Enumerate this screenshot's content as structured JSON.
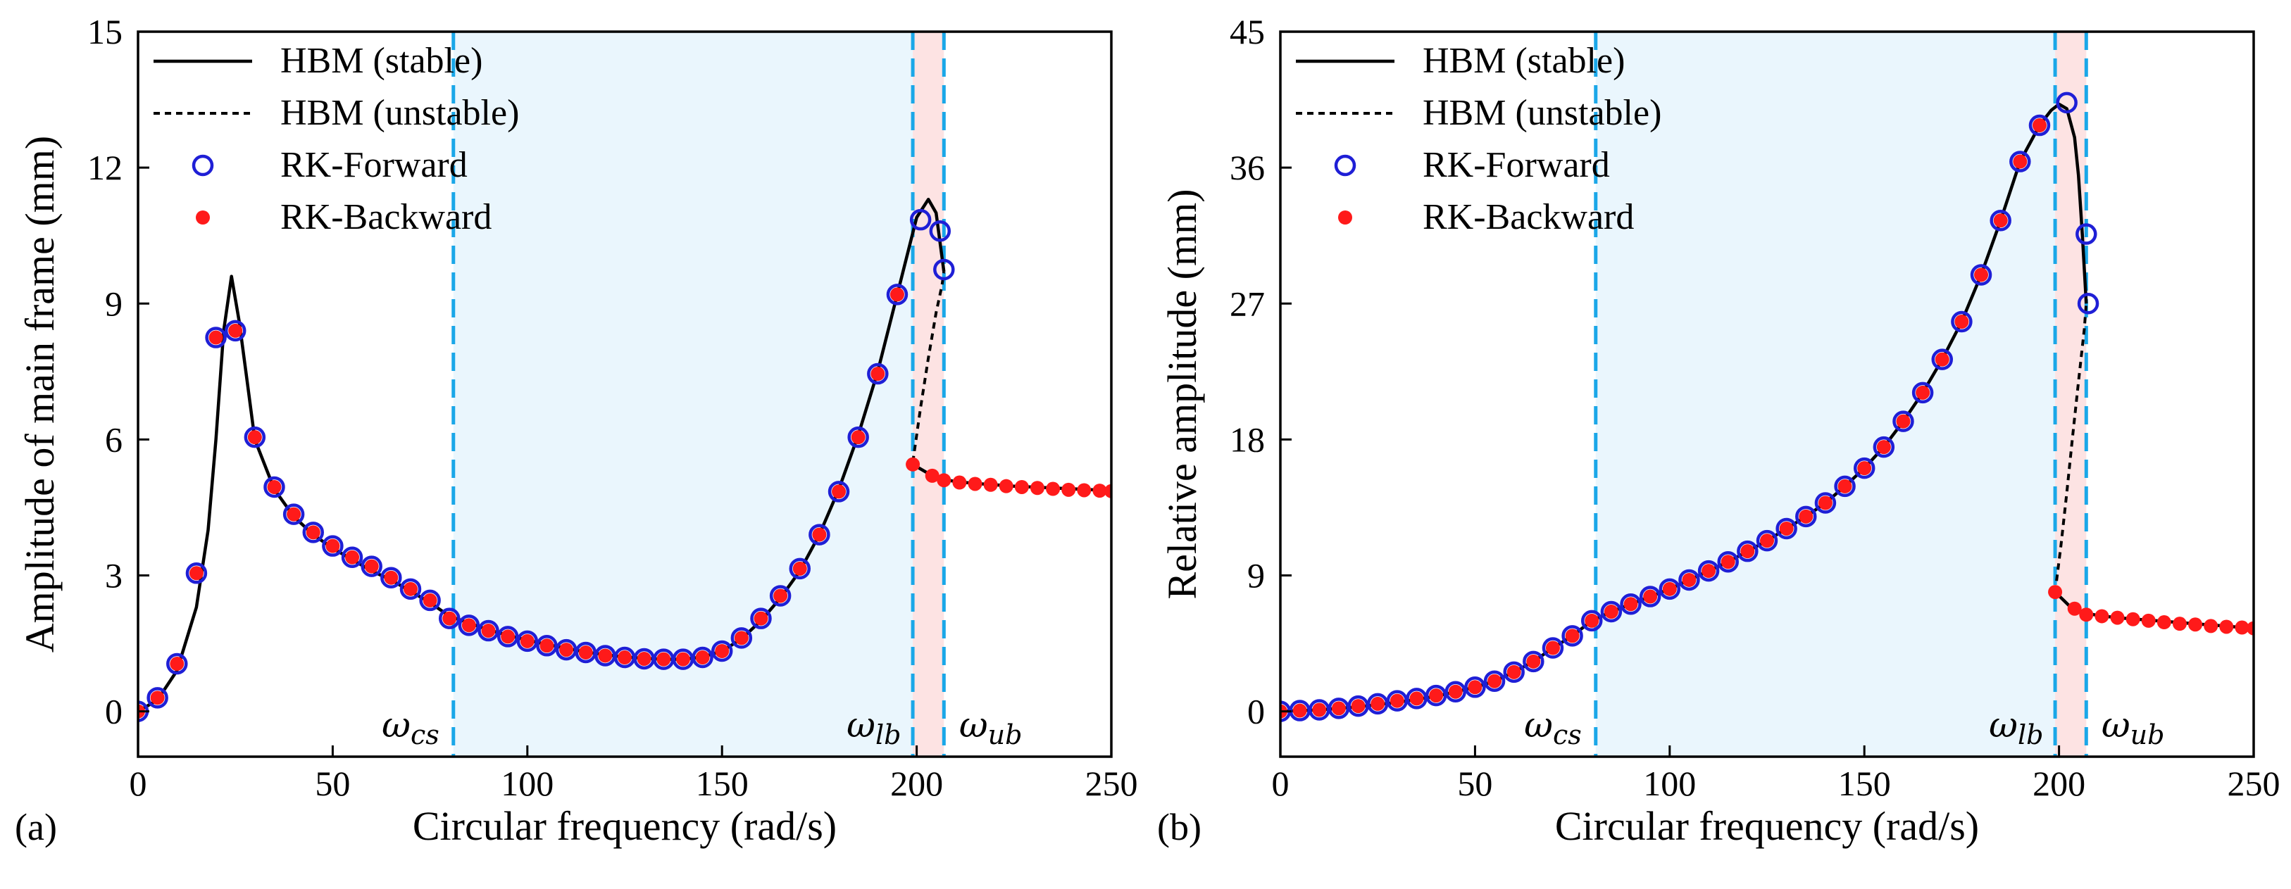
{
  "chart_data": [
    {
      "type": "line",
      "panel_label": "(a)",
      "xlabel": "Circular frequency (rad/s)",
      "ylabel": "Amplitude of main frame (mm)",
      "xlim": [
        0,
        250
      ],
      "ylim": [
        -1,
        15
      ],
      "xticks": [
        0,
        50,
        100,
        150,
        200,
        250
      ],
      "yticks": [
        0,
        3,
        6,
        9,
        12,
        15
      ],
      "regions": [
        {
          "x0": 81,
          "x1": 199,
          "color": "#eaf6fd"
        },
        {
          "x0": 199,
          "x1": 207,
          "color": "#fde3e3"
        }
      ],
      "vlines": [
        81,
        199,
        207
      ],
      "annotations": [
        {
          "symbol": "ω",
          "sub": "cs",
          "x": 70,
          "y": -0.3
        },
        {
          "symbol": "ω",
          "sub": "lb",
          "x": 189,
          "y": -0.3
        },
        {
          "symbol": "ω",
          "sub": "ub",
          "x": 219,
          "y": -0.3
        }
      ],
      "legend": {
        "position": "top-left",
        "entries": [
          "HBM (stable)",
          "HBM (unstable)",
          "RK-Forward",
          "RK-Backward"
        ]
      },
      "series": [
        {
          "name": "HBM (stable)",
          "style": "solid",
          "segments": [
            {
              "x": [
                0,
                5,
                10,
                15,
                18,
                20,
                22,
                24,
                26,
                28,
                30,
                35,
                40,
                45,
                50,
                55,
                60,
                65,
                70,
                75,
                80,
                85,
                90,
                95,
                100,
                105,
                110,
                115,
                120,
                125,
                130,
                135,
                140,
                145,
                150,
                155,
                160,
                165,
                170,
                175,
                180,
                185,
                190,
                195,
                200,
                203,
                205,
                207
              ],
              "y": [
                0,
                0.25,
                0.9,
                2.3,
                4.0,
                6.0,
                8.4,
                9.6,
                8.6,
                7.3,
                6.0,
                4.9,
                4.3,
                3.9,
                3.6,
                3.35,
                3.1,
                2.9,
                2.65,
                2.4,
                2.1,
                1.95,
                1.8,
                1.68,
                1.57,
                1.48,
                1.39,
                1.31,
                1.25,
                1.2,
                1.17,
                1.15,
                1.15,
                1.2,
                1.33,
                1.6,
                2.0,
                2.5,
                3.1,
                3.9,
                4.9,
                6.1,
                7.5,
                9.2,
                10.9,
                11.3,
                11.0,
                9.7
              ]
            },
            {
              "x": [
                199,
                203,
                207,
                210,
                215,
                220,
                225,
                230,
                235,
                240,
                245,
                250
              ],
              "y": [
                5.45,
                5.25,
                5.12,
                5.07,
                5.03,
                5.0,
                4.97,
                4.95,
                4.93,
                4.91,
                4.89,
                4.86
              ]
            }
          ]
        },
        {
          "name": "HBM (unstable)",
          "style": "dashed",
          "segments": [
            {
              "x": [
                199,
                201,
                203,
                205,
                206.5,
                207
              ],
              "y": [
                5.5,
                6.7,
                7.8,
                8.8,
                9.4,
                9.7
              ]
            }
          ]
        },
        {
          "name": "RK-Forward",
          "marker": "open-circle",
          "color": "#1f1fd6",
          "x": [
            0,
            5,
            10,
            15,
            20,
            25,
            30,
            35,
            40,
            45,
            50,
            55,
            60,
            65,
            70,
            75,
            80,
            85,
            90,
            95,
            100,
            105,
            110,
            115,
            120,
            125,
            130,
            135,
            140,
            145,
            150,
            155,
            160,
            165,
            170,
            175,
            180,
            185,
            190,
            195,
            201,
            206,
            207
          ],
          "y": [
            0,
            0.3,
            1.05,
            3.05,
            8.25,
            8.4,
            6.05,
            4.95,
            4.35,
            3.95,
            3.65,
            3.4,
            3.2,
            2.95,
            2.7,
            2.45,
            2.05,
            1.9,
            1.78,
            1.65,
            1.55,
            1.45,
            1.36,
            1.3,
            1.23,
            1.19,
            1.16,
            1.15,
            1.15,
            1.19,
            1.33,
            1.62,
            2.05,
            2.55,
            3.15,
            3.9,
            4.85,
            6.05,
            7.45,
            9.2,
            10.85,
            10.6,
            9.75
          ]
        },
        {
          "name": "RK-Backward",
          "marker": "filled-circle",
          "color": "#ff1a1a",
          "x": [
            0,
            5,
            10,
            15,
            20,
            25,
            30,
            35,
            40,
            45,
            50,
            55,
            60,
            65,
            70,
            75,
            80,
            85,
            90,
            95,
            100,
            105,
            110,
            115,
            120,
            125,
            130,
            135,
            140,
            145,
            150,
            155,
            160,
            165,
            170,
            175,
            180,
            185,
            190,
            195,
            199,
            204,
            207,
            211,
            215,
            219,
            223,
            227,
            231,
            235,
            239,
            243,
            247,
            250
          ],
          "y": [
            0,
            0.3,
            1.05,
            3.05,
            8.25,
            8.4,
            6.05,
            4.95,
            4.35,
            3.95,
            3.65,
            3.4,
            3.2,
            2.95,
            2.7,
            2.45,
            2.05,
            1.9,
            1.78,
            1.65,
            1.55,
            1.45,
            1.36,
            1.3,
            1.23,
            1.19,
            1.16,
            1.15,
            1.15,
            1.19,
            1.33,
            1.62,
            2.05,
            2.55,
            3.15,
            3.9,
            4.85,
            6.05,
            7.45,
            9.2,
            5.45,
            5.2,
            5.1,
            5.05,
            5.02,
            5.0,
            4.97,
            4.95,
            4.93,
            4.91,
            4.89,
            4.88,
            4.87,
            4.86
          ]
        }
      ]
    },
    {
      "type": "line",
      "panel_label": "(b)",
      "xlabel": "Circular frequency (rad/s)",
      "ylabel": "Relative amplitude (mm)",
      "xlim": [
        0,
        250
      ],
      "ylim": [
        -3,
        45
      ],
      "xticks": [
        0,
        50,
        100,
        150,
        200,
        250
      ],
      "yticks": [
        0,
        9,
        18,
        27,
        36,
        45
      ],
      "regions": [
        {
          "x0": 81,
          "x1": 199,
          "color": "#eaf6fd"
        },
        {
          "x0": 199,
          "x1": 207,
          "color": "#fde3e3"
        }
      ],
      "vlines": [
        81,
        199,
        207
      ],
      "annotations": [
        {
          "symbol": "ω",
          "sub": "cs",
          "x": 70,
          "y": -0.9
        },
        {
          "symbol": "ω",
          "sub": "lb",
          "x": 189,
          "y": -0.9
        },
        {
          "symbol": "ω",
          "sub": "ub",
          "x": 219,
          "y": -0.9
        }
      ],
      "legend": {
        "position": "top-left",
        "entries": [
          "HBM (stable)",
          "HBM (unstable)",
          "RK-Forward",
          "RK-Backward"
        ]
      },
      "series": [
        {
          "name": "HBM (stable)",
          "style": "solid",
          "segments": [
            {
              "x": [
                0,
                10,
                20,
                30,
                40,
                50,
                55,
                60,
                65,
                70,
                75,
                80,
                85,
                90,
                95,
                100,
                105,
                110,
                115,
                120,
                125,
                130,
                135,
                140,
                145,
                150,
                155,
                160,
                165,
                170,
                175,
                180,
                185,
                190,
                195,
                198,
                200,
                202,
                204,
                205,
                206,
                207
              ],
              "y": [
                0,
                0.1,
                0.3,
                0.6,
                1.0,
                1.6,
                2.0,
                2.6,
                3.3,
                4.2,
                5.0,
                6.0,
                6.6,
                7.1,
                7.6,
                8.1,
                8.7,
                9.3,
                9.9,
                10.6,
                11.3,
                12.1,
                12.9,
                13.8,
                14.9,
                16.1,
                17.5,
                19.2,
                21.1,
                23.3,
                25.8,
                28.9,
                32.5,
                36.4,
                38.8,
                39.8,
                40.2,
                39.9,
                38.0,
                35.5,
                31.5,
                27.0
              ]
            },
            {
              "x": [
                199,
                203,
                207,
                210,
                215,
                220,
                225,
                230,
                235,
                240,
                245,
                250
              ],
              "y": [
                7.9,
                6.9,
                6.5,
                6.35,
                6.2,
                6.1,
                6.0,
                5.9,
                5.8,
                5.7,
                5.6,
                5.5
              ]
            }
          ]
        },
        {
          "name": "HBM (unstable)",
          "style": "dashed",
          "segments": [
            {
              "x": [
                199,
                200.5,
                202,
                203.5,
                205,
                206.5,
                207
              ],
              "y": [
                7.9,
                11.0,
                14.5,
                18.2,
                21.8,
                25.3,
                27.0
              ]
            }
          ]
        },
        {
          "name": "RK-Forward",
          "marker": "open-circle",
          "color": "#1f1fd6",
          "x": [
            0,
            5,
            10,
            15,
            20,
            25,
            30,
            35,
            40,
            45,
            50,
            55,
            60,
            65,
            70,
            75,
            80,
            85,
            90,
            95,
            100,
            105,
            110,
            115,
            120,
            125,
            130,
            135,
            140,
            145,
            150,
            155,
            160,
            165,
            170,
            175,
            180,
            185,
            190,
            195,
            202,
            207,
            207.5
          ],
          "y": [
            0,
            0.05,
            0.1,
            0.2,
            0.35,
            0.5,
            0.7,
            0.85,
            1.05,
            1.3,
            1.6,
            2.0,
            2.6,
            3.3,
            4.2,
            5.0,
            6.0,
            6.6,
            7.1,
            7.6,
            8.1,
            8.7,
            9.3,
            9.9,
            10.6,
            11.3,
            12.1,
            12.9,
            13.8,
            14.9,
            16.1,
            17.5,
            19.2,
            21.1,
            23.3,
            25.8,
            28.9,
            32.5,
            36.4,
            38.8,
            40.3,
            31.6,
            27.0
          ]
        },
        {
          "name": "RK-Backward",
          "marker": "filled-circle",
          "color": "#ff1a1a",
          "x": [
            0,
            5,
            10,
            15,
            20,
            25,
            30,
            35,
            40,
            45,
            50,
            55,
            60,
            65,
            70,
            75,
            80,
            85,
            90,
            95,
            100,
            105,
            110,
            115,
            120,
            125,
            130,
            135,
            140,
            145,
            150,
            155,
            160,
            165,
            170,
            175,
            180,
            185,
            190,
            195,
            199,
            204,
            207,
            211,
            215,
            219,
            223,
            227,
            231,
            235,
            239,
            243,
            247,
            250
          ],
          "y": [
            0,
            0.05,
            0.1,
            0.2,
            0.35,
            0.5,
            0.7,
            0.85,
            1.05,
            1.3,
            1.6,
            2.0,
            2.6,
            3.3,
            4.2,
            5.0,
            6.0,
            6.6,
            7.1,
            7.6,
            8.1,
            8.7,
            9.3,
            9.9,
            10.6,
            11.3,
            12.1,
            12.9,
            13.8,
            14.9,
            16.1,
            17.5,
            19.2,
            21.1,
            23.3,
            25.8,
            28.9,
            32.5,
            36.4,
            38.8,
            7.9,
            6.8,
            6.4,
            6.3,
            6.2,
            6.1,
            6.0,
            5.9,
            5.8,
            5.75,
            5.65,
            5.6,
            5.55,
            5.5
          ]
        }
      ]
    }
  ]
}
